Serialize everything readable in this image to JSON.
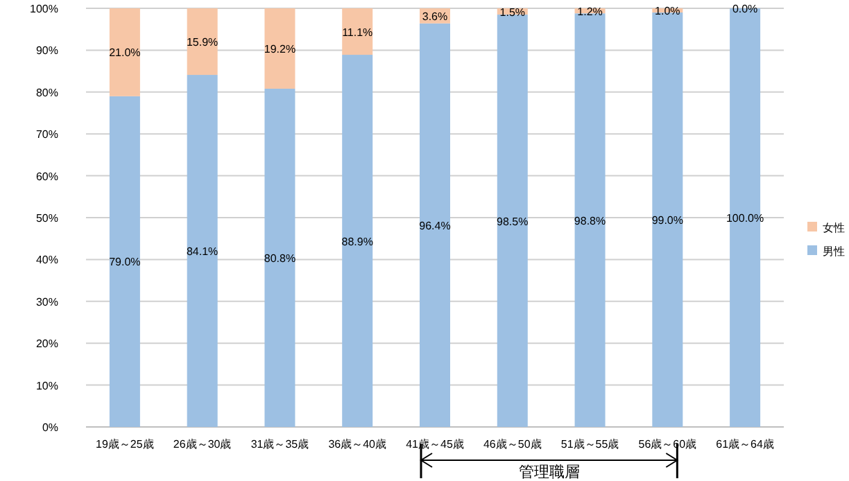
{
  "chart_data": {
    "type": "bar",
    "stacked": true,
    "categories": [
      "19歳～25歳",
      "26歳～30歳",
      "31歳～35歳",
      "36歳～40歳",
      "41歳～45歳",
      "46歳～50歳",
      "51歳～55歳",
      "56歳～60歳",
      "61歳～64歳"
    ],
    "series": [
      {
        "name": "男性",
        "color": "#9dc0e3",
        "values": [
          79.0,
          84.1,
          80.8,
          88.9,
          96.4,
          98.5,
          98.8,
          99.0,
          100.0
        ],
        "value_labels": [
          "79.0%",
          "84.1%",
          "80.8%",
          "88.9%",
          "96.4%",
          "98.5%",
          "98.8%",
          "99.0%",
          "100.0%"
        ]
      },
      {
        "name": "女性",
        "color": "#f7c6a6",
        "values": [
          21.0,
          15.9,
          19.2,
          11.1,
          3.6,
          1.5,
          1.2,
          1.0,
          0.0
        ],
        "value_labels": [
          "21.0%",
          "15.9%",
          "19.2%",
          "11.1%",
          "3.6%",
          "1.5%",
          "1.2%",
          "1.0%",
          "0.0%"
        ]
      }
    ],
    "ylim": [
      0,
      100
    ],
    "yticks": [
      {
        "value": 0,
        "label": "0%"
      },
      {
        "value": 10,
        "label": "10%"
      },
      {
        "value": 20,
        "label": "20%"
      },
      {
        "value": 30,
        "label": "30%"
      },
      {
        "value": 40,
        "label": "40%"
      },
      {
        "value": 50,
        "label": "50%"
      },
      {
        "value": 60,
        "label": "60%"
      },
      {
        "value": 70,
        "label": "70%"
      },
      {
        "value": 80,
        "label": "80%"
      },
      {
        "value": 90,
        "label": "90%"
      },
      {
        "value": 100,
        "label": "100%"
      }
    ],
    "grid": "y",
    "legend": "right",
    "annotations": [
      "管理職層"
    ]
  }
}
